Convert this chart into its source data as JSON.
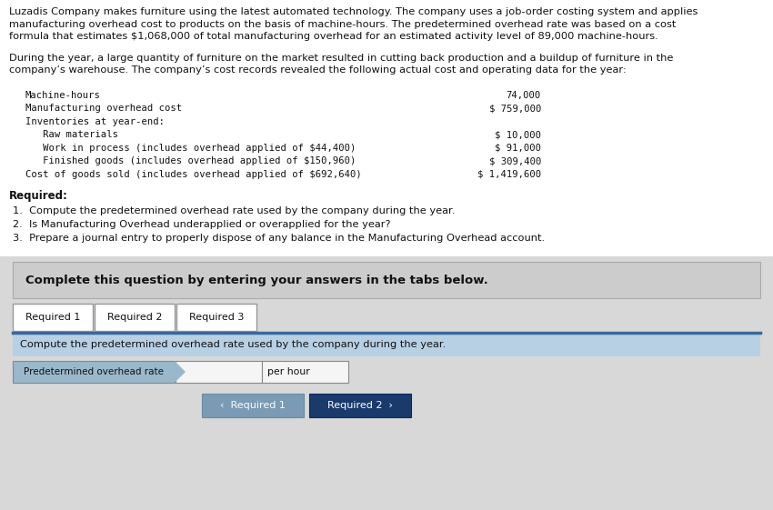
{
  "white": "#ffffff",
  "light_gray_bg": "#d8d8d8",
  "complete_box_bg": "#c8c8c8",
  "tab_area_bg": "#d0d0d8",
  "instr_bar_bg": "#b8cce0",
  "input_label_bg": "#9ab8cc",
  "input_box_bg": "#e8e8e8",
  "btn_left_bg": "#7a9ab8",
  "btn_right_bg": "#1a3a6c",
  "para1_line1": "Luzadis Company makes furniture using the latest automated technology. The company uses a job-order costing system and applies",
  "para1_line2": "manufacturing overhead cost to products on the basis of machine-hours. The predetermined overhead rate was based on a cost",
  "para1_line3": "formula that estimates $1,068,000 of total manufacturing overhead for an estimated activity level of 89,000 machine-hours.",
  "para2_line1": "During the year, a large quantity of furniture on the market resulted in cutting back production and a buildup of furniture in the",
  "para2_line2": "company’s warehouse. The company’s cost records revealed the following actual cost and operating data for the year:",
  "data_rows": [
    [
      "Machine-hours",
      "74,000"
    ],
    [
      "Manufacturing overhead cost",
      "$ 759,000"
    ],
    [
      "Inventories at year-end:",
      ""
    ],
    [
      "   Raw materials",
      "$ 10,000"
    ],
    [
      "   Work in process (includes overhead applied of $44,400)",
      "$ 91,000"
    ],
    [
      "   Finished goods (includes overhead applied of $150,960)",
      "$ 309,400"
    ],
    [
      "Cost of goods sold (includes overhead applied of $692,640)",
      "$ 1,419,600"
    ]
  ],
  "required_label": "Required:",
  "required_items": [
    "1.  Compute the predetermined overhead rate used by the company during the year.",
    "2.  Is Manufacturing Overhead underapplied or overapplied for the year?",
    "3.  Prepare a journal entry to properly dispose of any balance in the Manufacturing Overhead account."
  ],
  "complete_text": "Complete this question by entering your answers in the tabs below.",
  "tabs": [
    "Required 1",
    "Required 2",
    "Required 3"
  ],
  "tab_instruction": "Compute the predetermined overhead rate used by the company during the year.",
  "input_label": "Predetermined overhead rate",
  "input_suffix": "per hour",
  "btn_left": "‹  Required 1",
  "btn_right": "Required 2  ›"
}
